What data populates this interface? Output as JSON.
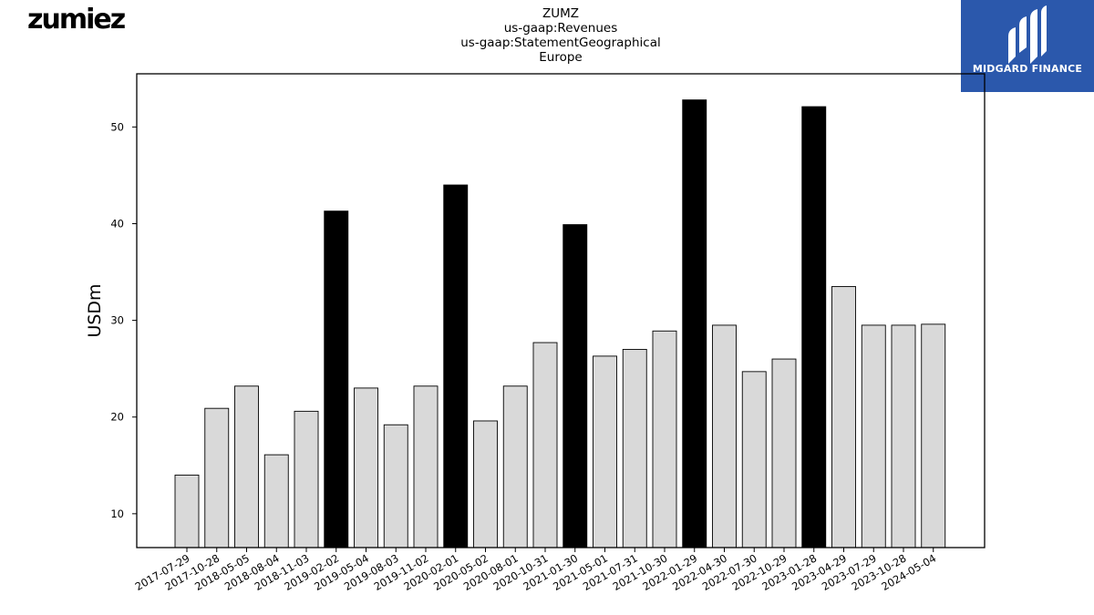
{
  "header": {
    "company_logo_text": "zumiez",
    "title_lines": [
      "ZUMZ",
      "us-gaap:Revenues",
      "us-gaap:StatementGeographical",
      "Europe"
    ],
    "brand_name": "MIDGARD FINANCE"
  },
  "chart_data": {
    "type": "bar",
    "ylabel": "USDm",
    "ylim": [
      6.5,
      55.5
    ],
    "yticks": [
      10,
      20,
      30,
      40,
      50
    ],
    "grid": false,
    "legend": "none",
    "colors": {
      "quarter": "#d9d9d9",
      "fiscal_year_end": "#000000",
      "edge": "#000000"
    },
    "categories": [
      "2017-07-29",
      "2017-10-28",
      "2018-05-05",
      "2018-08-04",
      "2018-11-03",
      "2019-02-02",
      "2019-05-04",
      "2019-08-03",
      "2019-11-02",
      "2020-02-01",
      "2020-05-02",
      "2020-08-01",
      "2020-10-31",
      "2021-01-30",
      "2021-05-01",
      "2021-07-31",
      "2021-10-30",
      "2022-01-29",
      "2022-04-30",
      "2022-07-30",
      "2022-10-29",
      "2023-01-28",
      "2023-04-29",
      "2023-07-29",
      "2023-10-28",
      "2024-05-04"
    ],
    "values": [
      14.0,
      20.9,
      23.2,
      16.1,
      20.6,
      41.3,
      23.0,
      19.2,
      23.2,
      44.0,
      19.6,
      23.2,
      27.7,
      39.9,
      26.3,
      27.0,
      28.9,
      52.8,
      29.5,
      24.7,
      26.0,
      52.1,
      33.5,
      29.5,
      29.5,
      29.6
    ],
    "highlighted": [
      false,
      false,
      false,
      false,
      false,
      true,
      false,
      false,
      false,
      true,
      false,
      false,
      false,
      true,
      false,
      false,
      false,
      true,
      false,
      false,
      false,
      true,
      false,
      false,
      false,
      false
    ]
  }
}
